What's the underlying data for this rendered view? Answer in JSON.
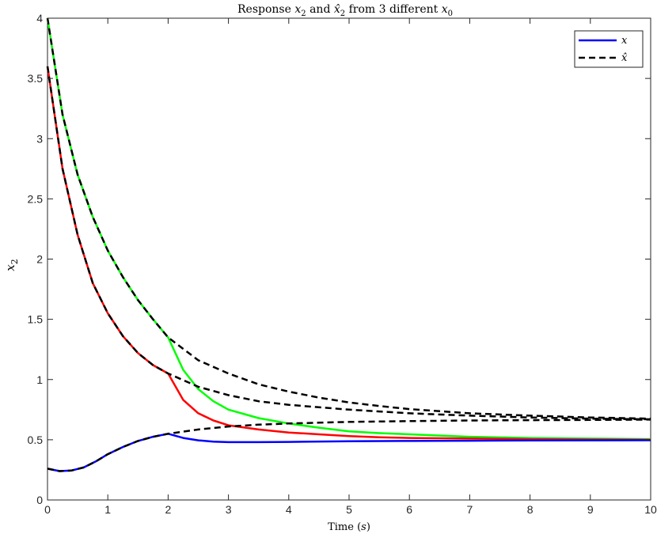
{
  "chart_data": {
    "type": "line",
    "title": {
      "parts": [
        "Response ",
        "x",
        "2",
        " and ",
        "x̂",
        "2",
        " from 3 different ",
        "x",
        "0"
      ]
    },
    "xlabel": {
      "parts": [
        "Time (",
        "s",
        ")"
      ]
    },
    "ylabel": {
      "parts": [
        "x",
        "2"
      ]
    },
    "xlim": [
      0,
      10
    ],
    "ylim": [
      0,
      4
    ],
    "xticks": [
      0,
      1,
      2,
      3,
      4,
      5,
      6,
      7,
      8,
      9,
      10
    ],
    "yticks": [
      0,
      0.5,
      1,
      1.5,
      2,
      2.5,
      3,
      3.5,
      4
    ],
    "ytick_labels": [
      "0",
      "0.5",
      "1",
      "1.5",
      "2",
      "2.5",
      "3",
      "3.5",
      "4"
    ],
    "xtick_labels": [
      "0",
      "1",
      "2",
      "3",
      "4",
      "5",
      "6",
      "7",
      "8",
      "9",
      "10"
    ],
    "grid": false,
    "legend": {
      "placement": "top-right",
      "entries": [
        {
          "label": "x",
          "style": "solid",
          "color": "#0000ff"
        },
        {
          "label": "x̂",
          "style": "dashed",
          "color": "#000000"
        }
      ]
    },
    "series": [
      {
        "color": "#00ff00",
        "style": "solid",
        "x": [
          0,
          0.25,
          0.5,
          0.75,
          1,
          1.25,
          1.5,
          1.75,
          2,
          2.25,
          2.5,
          2.75,
          3,
          3.5,
          4,
          4.5,
          5,
          5.5,
          6,
          7,
          8,
          9,
          10
        ],
        "y": [
          4.0,
          3.2,
          2.7,
          2.35,
          2.07,
          1.85,
          1.66,
          1.5,
          1.35,
          1.08,
          0.92,
          0.82,
          0.75,
          0.68,
          0.635,
          0.6,
          0.57,
          0.555,
          0.545,
          0.525,
          0.515,
          0.51,
          0.505
        ]
      },
      {
        "color": "#ff0000",
        "style": "solid",
        "x": [
          0,
          0.25,
          0.5,
          0.75,
          1,
          1.25,
          1.5,
          1.75,
          2,
          2.25,
          2.5,
          2.75,
          3,
          3.5,
          4,
          4.5,
          5,
          5.5,
          6,
          7,
          8,
          9,
          10
        ],
        "y": [
          3.6,
          2.75,
          2.2,
          1.8,
          1.55,
          1.36,
          1.22,
          1.12,
          1.05,
          0.83,
          0.72,
          0.66,
          0.62,
          0.585,
          0.56,
          0.545,
          0.53,
          0.52,
          0.515,
          0.51,
          0.505,
          0.502,
          0.5
        ]
      },
      {
        "color": "#0000ff",
        "style": "solid",
        "x": [
          0,
          0.2,
          0.4,
          0.6,
          0.8,
          1,
          1.25,
          1.5,
          1.75,
          2,
          2.25,
          2.5,
          2.75,
          3,
          3.5,
          4,
          5,
          6,
          7,
          8,
          9,
          10
        ],
        "y": [
          0.26,
          0.24,
          0.245,
          0.27,
          0.32,
          0.38,
          0.44,
          0.49,
          0.525,
          0.55,
          0.515,
          0.495,
          0.485,
          0.48,
          0.48,
          0.482,
          0.488,
          0.49,
          0.492,
          0.494,
          0.495,
          0.496
        ]
      },
      {
        "color": "#000000",
        "style": "dashed",
        "x": [
          0,
          0.25,
          0.5,
          0.75,
          1,
          1.25,
          1.5,
          1.75,
          2,
          2.5,
          3,
          3.5,
          4,
          4.5,
          5,
          5.5,
          6,
          7,
          8,
          9,
          10
        ],
        "y": [
          4.0,
          3.2,
          2.7,
          2.35,
          2.07,
          1.85,
          1.66,
          1.5,
          1.35,
          1.16,
          1.05,
          0.96,
          0.9,
          0.85,
          0.81,
          0.78,
          0.755,
          0.72,
          0.7,
          0.685,
          0.675
        ]
      },
      {
        "color": "#000000",
        "style": "dashed",
        "x": [
          0,
          0.25,
          0.5,
          0.75,
          1,
          1.25,
          1.5,
          1.75,
          2,
          2.5,
          3,
          3.5,
          4,
          4.5,
          5,
          5.5,
          6,
          7,
          8,
          9,
          10
        ],
        "y": [
          3.6,
          2.75,
          2.2,
          1.8,
          1.55,
          1.36,
          1.22,
          1.12,
          1.05,
          0.94,
          0.87,
          0.82,
          0.79,
          0.77,
          0.75,
          0.735,
          0.72,
          0.7,
          0.685,
          0.675,
          0.67
        ]
      },
      {
        "color": "#000000",
        "style": "dashed",
        "x": [
          0,
          0.2,
          0.4,
          0.6,
          0.8,
          1,
          1.25,
          1.5,
          1.75,
          2,
          2.5,
          3,
          3.5,
          4,
          4.5,
          5,
          6,
          7,
          8,
          9,
          10
        ],
        "y": [
          0.26,
          0.24,
          0.245,
          0.27,
          0.32,
          0.38,
          0.44,
          0.49,
          0.525,
          0.55,
          0.585,
          0.61,
          0.625,
          0.635,
          0.642,
          0.648,
          0.655,
          0.66,
          0.663,
          0.665,
          0.667
        ]
      }
    ]
  }
}
